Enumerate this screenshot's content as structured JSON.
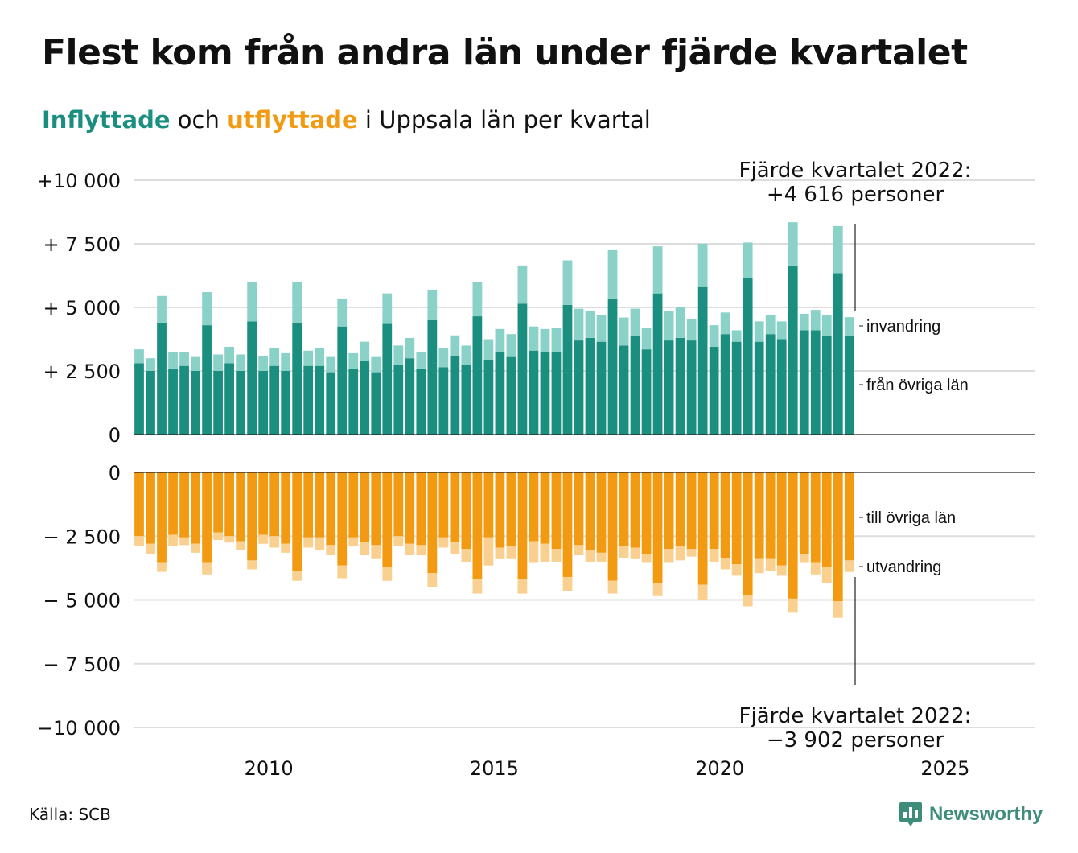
{
  "title": "Flest kom från andra län under fjärde kvartalet",
  "subtitle": {
    "part1": "Inflyttade",
    "part2": " och ",
    "part3": "utflyttade",
    "part4": " i Uppsala län per kvartal"
  },
  "source": "Källa: SCB",
  "logo": {
    "text": "Newsworthy"
  },
  "colors": {
    "in_base": "#1a8f80",
    "in_top": "#8ad1c8",
    "out_base": "#f29b12",
    "out_top": "#f9d08f",
    "grid": "#dddddd",
    "axis": "#222222"
  },
  "chart_data": [
    {
      "type": "bar",
      "stacked": true,
      "x": [
        "2007Q1",
        "2007Q2",
        "2007Q3",
        "2007Q4",
        "2008Q1",
        "2008Q2",
        "2008Q3",
        "2008Q4",
        "2009Q1",
        "2009Q2",
        "2009Q3",
        "2009Q4",
        "2010Q1",
        "2010Q2",
        "2010Q3",
        "2010Q4",
        "2011Q1",
        "2011Q2",
        "2011Q3",
        "2011Q4",
        "2012Q1",
        "2012Q2",
        "2012Q3",
        "2012Q4",
        "2013Q1",
        "2013Q2",
        "2013Q3",
        "2013Q4",
        "2014Q1",
        "2014Q2",
        "2014Q3",
        "2014Q4",
        "2015Q1",
        "2015Q2",
        "2015Q3",
        "2015Q4",
        "2016Q1",
        "2016Q2",
        "2016Q3",
        "2016Q4",
        "2017Q1",
        "2017Q2",
        "2017Q3",
        "2017Q4",
        "2018Q1",
        "2018Q2",
        "2018Q3",
        "2018Q4",
        "2019Q1",
        "2019Q2",
        "2019Q3",
        "2019Q4",
        "2020Q1",
        "2020Q2",
        "2020Q3",
        "2020Q4",
        "2021Q1",
        "2021Q2",
        "2021Q3",
        "2021Q4",
        "2022Q1",
        "2022Q2",
        "2022Q3",
        "2022Q4"
      ],
      "series": [
        {
          "name": "från övriga län",
          "values": [
            2800,
            2500,
            4400,
            2600,
            2700,
            2500,
            4300,
            2500,
            2800,
            2500,
            4450,
            2500,
            2700,
            2500,
            4400,
            2700,
            2700,
            2450,
            4250,
            2600,
            2900,
            2450,
            4350,
            2750,
            3000,
            2600,
            4500,
            2650,
            3100,
            2750,
            4650,
            2950,
            3250,
            3050,
            5150,
            3300,
            3250,
            3250,
            5100,
            3700,
            3800,
            3650,
            5350,
            3500,
            3900,
            3350,
            5550,
            3700,
            3800,
            3700,
            5800,
            3450,
            3950,
            3650,
            6150,
            3650,
            3950,
            3750,
            6650,
            4100,
            4100,
            3900,
            6350,
            3900
          ]
        },
        {
          "name": "invandring",
          "values": [
            550,
            500,
            1050,
            650,
            550,
            550,
            1300,
            650,
            650,
            650,
            1550,
            600,
            700,
            700,
            1600,
            600,
            700,
            600,
            1100,
            600,
            750,
            600,
            1200,
            750,
            800,
            650,
            1200,
            750,
            800,
            750,
            1350,
            800,
            900,
            900,
            1500,
            950,
            900,
            950,
            1750,
            1250,
            1050,
            1050,
            1900,
            1100,
            1050,
            850,
            1850,
            1150,
            1200,
            850,
            1700,
            850,
            850,
            450,
            1400,
            800,
            750,
            700,
            1700,
            650,
            800,
            800,
            1850,
            716
          ]
        }
      ],
      "ylim": [
        0,
        10000
      ],
      "yticks": [
        "0",
        "+ 2 500",
        "+ 5 000",
        "+ 7 500",
        "+10 000"
      ],
      "ytick_values": [
        0,
        2500,
        5000,
        7500,
        10000
      ],
      "xticks": [
        "2010",
        "2015",
        "2020",
        "2025"
      ],
      "xtick_values": [
        2010,
        2015,
        2020,
        2025
      ],
      "xlim": [
        2007,
        2027
      ],
      "annotation": {
        "line1": "Fjärde kvartalet 2022:",
        "line2": "+4 616 personer"
      },
      "series_labels": [
        "invandring",
        "från övriga län"
      ]
    },
    {
      "type": "bar",
      "stacked": true,
      "x": [
        "2007Q1",
        "2007Q2",
        "2007Q3",
        "2007Q4",
        "2008Q1",
        "2008Q2",
        "2008Q3",
        "2008Q4",
        "2009Q1",
        "2009Q2",
        "2009Q3",
        "2009Q4",
        "2010Q1",
        "2010Q2",
        "2010Q3",
        "2010Q4",
        "2011Q1",
        "2011Q2",
        "2011Q3",
        "2011Q4",
        "2012Q1",
        "2012Q2",
        "2012Q3",
        "2012Q4",
        "2013Q1",
        "2013Q2",
        "2013Q3",
        "2013Q4",
        "2014Q1",
        "2014Q2",
        "2014Q3",
        "2014Q4",
        "2015Q1",
        "2015Q2",
        "2015Q3",
        "2015Q4",
        "2016Q1",
        "2016Q2",
        "2016Q3",
        "2016Q4",
        "2017Q1",
        "2017Q2",
        "2017Q3",
        "2017Q4",
        "2018Q1",
        "2018Q2",
        "2018Q3",
        "2018Q4",
        "2019Q1",
        "2019Q2",
        "2019Q3",
        "2019Q4",
        "2020Q1",
        "2020Q2",
        "2020Q3",
        "2020Q4",
        "2021Q1",
        "2021Q2",
        "2021Q3",
        "2021Q4",
        "2022Q1",
        "2022Q2",
        "2022Q3",
        "2022Q4"
      ],
      "series": [
        {
          "name": "till övriga län",
          "values": [
            -2500,
            -2800,
            -3550,
            -2450,
            -2550,
            -2800,
            -3550,
            -2350,
            -2500,
            -2700,
            -3450,
            -2450,
            -2500,
            -2800,
            -3850,
            -2550,
            -2550,
            -2850,
            -3650,
            -2550,
            -2750,
            -2850,
            -3700,
            -2500,
            -2800,
            -2850,
            -3950,
            -2550,
            -2750,
            -3000,
            -4200,
            -2550,
            -2950,
            -2900,
            -4200,
            -2700,
            -2800,
            -3000,
            -4100,
            -2850,
            -3050,
            -3150,
            -4250,
            -2900,
            -2950,
            -3200,
            -4350,
            -3000,
            -2900,
            -3000,
            -4400,
            -3000,
            -3350,
            -3600,
            -4800,
            -3400,
            -3400,
            -3650,
            -4950,
            -3200,
            -3550,
            -3700,
            -5050,
            -3450
          ]
        },
        {
          "name": "utvandring",
          "values": [
            -400,
            -400,
            -350,
            -450,
            -300,
            -350,
            -450,
            -300,
            -250,
            -350,
            -350,
            -350,
            -450,
            -350,
            -400,
            -400,
            -500,
            -400,
            -500,
            -350,
            -500,
            -550,
            -550,
            -400,
            -450,
            -400,
            -550,
            -400,
            -450,
            -500,
            -550,
            -1100,
            -450,
            -500,
            -550,
            -850,
            -700,
            -500,
            -550,
            -400,
            -450,
            -350,
            -500,
            -450,
            -450,
            -350,
            -500,
            -550,
            -550,
            -300,
            -600,
            -500,
            -450,
            -450,
            -450,
            -550,
            -450,
            -400,
            -550,
            -350,
            -450,
            -650,
            -650,
            -452
          ]
        }
      ],
      "ylim": [
        -10000,
        0
      ],
      "yticks": [
        "0",
        "− 2 500",
        "− 5 000",
        "− 7 500",
        "−10 000"
      ],
      "ytick_values": [
        0,
        -2500,
        -5000,
        -7500,
        -10000
      ],
      "annotation": {
        "line1": "Fjärde kvartalet 2022:",
        "line2": "−3 902 personer"
      },
      "series_labels": [
        "till övriga län",
        "utvandring"
      ]
    }
  ]
}
